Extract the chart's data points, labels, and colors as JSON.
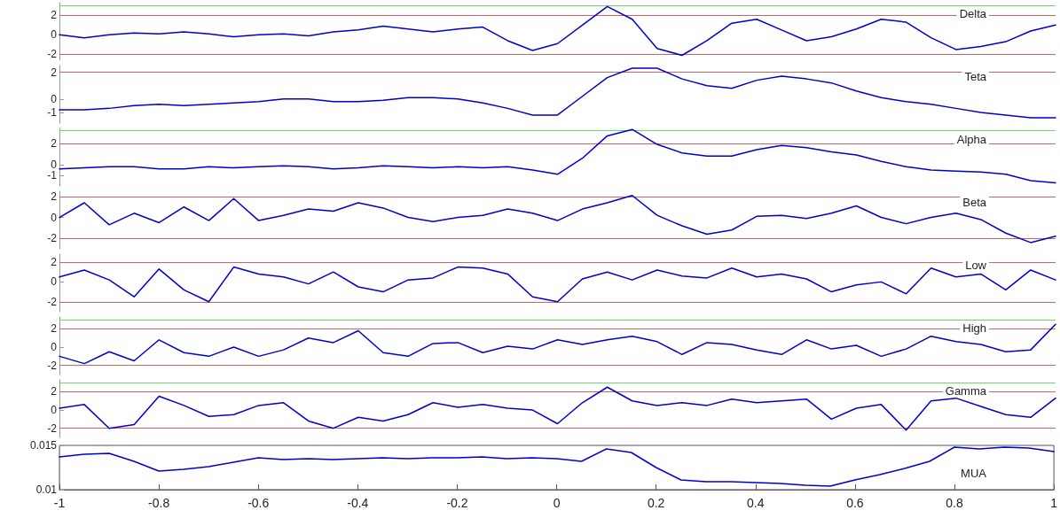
{
  "chart_data": [
    {
      "type": "line",
      "x": [
        -1,
        -0.95,
        -0.9,
        -0.85,
        -0.8,
        -0.75,
        -0.7,
        -0.65,
        -0.6,
        -0.55,
        -0.5,
        -0.45,
        -0.4,
        -0.35,
        -0.3,
        -0.25,
        -0.2,
        -0.15,
        -0.1,
        -0.05,
        0,
        0.05,
        0.1,
        0.15,
        0.2,
        0.25,
        0.3,
        0.35,
        0.4,
        0.45,
        0.5,
        0.55,
        0.6,
        0.65,
        0.7,
        0.75,
        0.8,
        0.85,
        0.9,
        0.95,
        1
      ],
      "xlim": [
        -1,
        1
      ],
      "ylim": [
        -2.6,
        3.3
      ],
      "yticks": [
        -2,
        0,
        2
      ],
      "tick_labels": "y",
      "grid": false,
      "line_style": "solid",
      "marker": "none",
      "series": [
        {
          "name": "Delta",
          "color": "#0000cc",
          "values": [
            0,
            -0.3,
            0,
            0.2,
            0.1,
            0.3,
            0.1,
            -0.2,
            0,
            0.1,
            -0.1,
            0.3,
            0.5,
            0.9,
            0.6,
            0.3,
            0.6,
            0.8,
            -0.6,
            -1.6,
            -0.9,
            1.0,
            2.9,
            1.6,
            -1.4,
            -2.1,
            -0.6,
            1.2,
            1.6,
            0.5,
            -0.6,
            -0.2,
            0.6,
            1.6,
            1.3,
            -0.3,
            -1.5,
            -1.2,
            -0.7,
            0.4,
            1.0
          ]
        }
      ],
      "ref_lines": [
        {
          "axis": "y",
          "value": 3,
          "color": "#66dd66"
        },
        {
          "axis": "y",
          "value": 2,
          "color": "#cc6666"
        },
        {
          "axis": "y",
          "value": -2,
          "color": "#cc6666"
        }
      ]
    },
    {
      "type": "line",
      "x": [
        -1,
        -0.95,
        -0.9,
        -0.85,
        -0.8,
        -0.75,
        -0.7,
        -0.65,
        -0.6,
        -0.55,
        -0.5,
        -0.45,
        -0.4,
        -0.35,
        -0.3,
        -0.25,
        -0.2,
        -0.15,
        -0.1,
        -0.05,
        0,
        0.05,
        0.1,
        0.15,
        0.2,
        0.25,
        0.3,
        0.35,
        0.4,
        0.45,
        0.5,
        0.55,
        0.6,
        0.65,
        0.7,
        0.75,
        0.8,
        0.85,
        0.9,
        0.95,
        1
      ],
      "xlim": [
        -1,
        1
      ],
      "ylim": [
        -1.8,
        2.5
      ],
      "yticks": [
        -1,
        0,
        2
      ],
      "tick_labels": "y",
      "grid": false,
      "line_style": "solid",
      "marker": "none",
      "series": [
        {
          "name": "Teta",
          "color": "#0000cc",
          "values": [
            -0.8,
            -0.8,
            -0.7,
            -0.5,
            -0.4,
            -0.5,
            -0.4,
            -0.3,
            -0.2,
            0,
            0,
            -0.2,
            -0.2,
            -0.1,
            0.1,
            0.1,
            0,
            -0.3,
            -0.7,
            -1.2,
            -1.2,
            0.2,
            1.6,
            2.3,
            2.3,
            1.5,
            1.0,
            0.8,
            1.4,
            1.7,
            1.5,
            1.2,
            0.6,
            0.1,
            -0.2,
            -0.4,
            -0.7,
            -1.0,
            -1.2,
            -1.4,
            -1.4
          ]
        }
      ],
      "ref_lines": [
        {
          "axis": "y",
          "value": 2,
          "color": "#cc6666"
        }
      ]
    },
    {
      "type": "line",
      "x": [
        -1,
        -0.95,
        -0.9,
        -0.85,
        -0.8,
        -0.75,
        -0.7,
        -0.65,
        -0.6,
        -0.55,
        -0.5,
        -0.45,
        -0.4,
        -0.35,
        -0.3,
        -0.25,
        -0.2,
        -0.15,
        -0.1,
        -0.05,
        0,
        0.05,
        0.1,
        0.15,
        0.2,
        0.25,
        0.3,
        0.35,
        0.4,
        0.45,
        0.5,
        0.55,
        0.6,
        0.65,
        0.7,
        0.75,
        0.8,
        0.85,
        0.9,
        0.95,
        1
      ],
      "xlim": [
        -1,
        1
      ],
      "ylim": [
        -2,
        3.4
      ],
      "yticks": [
        -1,
        0,
        2
      ],
      "tick_labels": "y",
      "grid": false,
      "line_style": "solid",
      "marker": "none",
      "series": [
        {
          "name": "Alpha",
          "color": "#0000cc",
          "values": [
            -0.4,
            -0.3,
            -0.2,
            -0.2,
            -0.4,
            -0.4,
            -0.2,
            -0.3,
            -0.2,
            -0.1,
            -0.2,
            -0.4,
            -0.3,
            -0.1,
            -0.2,
            -0.3,
            -0.2,
            -0.3,
            -0.2,
            -0.5,
            -0.9,
            0.6,
            2.7,
            3.3,
            1.9,
            1.1,
            0.8,
            0.8,
            1.4,
            1.8,
            1.6,
            1.2,
            0.9,
            0.3,
            -0.2,
            -0.5,
            -0.6,
            -0.7,
            -0.9,
            -1.5,
            -1.7
          ]
        }
      ],
      "ref_lines": [
        {
          "axis": "y",
          "value": 3.2,
          "color": "#66dd66"
        },
        {
          "axis": "y",
          "value": 2,
          "color": "#cc6666"
        }
      ]
    },
    {
      "type": "line",
      "x": [
        -1,
        -0.95,
        -0.9,
        -0.85,
        -0.8,
        -0.75,
        -0.7,
        -0.65,
        -0.6,
        -0.55,
        -0.5,
        -0.45,
        -0.4,
        -0.35,
        -0.3,
        -0.25,
        -0.2,
        -0.15,
        -0.1,
        -0.05,
        0,
        0.05,
        0.1,
        0.15,
        0.2,
        0.25,
        0.3,
        0.35,
        0.4,
        0.45,
        0.5,
        0.55,
        0.6,
        0.65,
        0.7,
        0.75,
        0.8,
        0.85,
        0.9,
        0.95,
        1
      ],
      "xlim": [
        -1,
        1
      ],
      "ylim": [
        -3,
        2.5
      ],
      "yticks": [
        -2,
        0,
        2
      ],
      "tick_labels": "y",
      "grid": false,
      "line_style": "solid",
      "marker": "none",
      "series": [
        {
          "name": "Beta",
          "color": "#0000cc",
          "values": [
            0,
            1.4,
            -0.7,
            0.4,
            -0.5,
            1.0,
            -0.3,
            1.8,
            -0.3,
            0.2,
            0.8,
            0.6,
            1.4,
            0.9,
            0,
            -0.4,
            0,
            0.2,
            0.8,
            0.4,
            -0.3,
            0.8,
            1.4,
            2.1,
            0.2,
            -0.8,
            -1.6,
            -1.2,
            0.1,
            0.2,
            -0.1,
            0.4,
            1.1,
            0,
            -0.6,
            0,
            0.4,
            -0.2,
            -1.5,
            -2.4,
            -1.8
          ]
        }
      ],
      "ref_lines": [
        {
          "axis": "y",
          "value": 2,
          "color": "#cc6666"
        },
        {
          "axis": "y",
          "value": -2,
          "color": "#cc6666"
        }
      ]
    },
    {
      "type": "line",
      "x": [
        -1,
        -0.95,
        -0.9,
        -0.85,
        -0.8,
        -0.75,
        -0.7,
        -0.65,
        -0.6,
        -0.55,
        -0.5,
        -0.45,
        -0.4,
        -0.35,
        -0.3,
        -0.25,
        -0.2,
        -0.15,
        -0.1,
        -0.05,
        0,
        0.05,
        0.1,
        0.15,
        0.2,
        0.25,
        0.3,
        0.35,
        0.4,
        0.45,
        0.5,
        0.55,
        0.6,
        0.65,
        0.7,
        0.75,
        0.8,
        0.85,
        0.9,
        0.95,
        1
      ],
      "xlim": [
        -1,
        1
      ],
      "ylim": [
        -3,
        2.8
      ],
      "yticks": [
        -2,
        0,
        2
      ],
      "tick_labels": "y",
      "grid": false,
      "line_style": "solid",
      "marker": "none",
      "series": [
        {
          "name": "Low",
          "color": "#0000cc",
          "values": [
            0.5,
            1.2,
            0.2,
            -1.5,
            1.3,
            -0.8,
            -2.0,
            1.5,
            0.8,
            0.5,
            -0.2,
            1.0,
            -0.5,
            -1.0,
            0.2,
            0.4,
            1.5,
            1.4,
            0.8,
            -1.5,
            -2.0,
            0.3,
            1.0,
            0.2,
            1.2,
            0.6,
            0.4,
            1.4,
            0.5,
            0.8,
            0.3,
            -1.0,
            -0.3,
            0,
            -1.2,
            1.4,
            0.5,
            0.8,
            -0.8,
            1.2,
            0.2
          ]
        }
      ],
      "ref_lines": [
        {
          "axis": "y",
          "value": 2,
          "color": "#cc6666"
        },
        {
          "axis": "y",
          "value": -2,
          "color": "#cc6666"
        }
      ]
    },
    {
      "type": "line",
      "x": [
        -1,
        -0.95,
        -0.9,
        -0.85,
        -0.8,
        -0.75,
        -0.7,
        -0.65,
        -0.6,
        -0.55,
        -0.5,
        -0.45,
        -0.4,
        -0.35,
        -0.3,
        -0.25,
        -0.2,
        -0.15,
        -0.1,
        -0.05,
        0,
        0.05,
        0.1,
        0.15,
        0.2,
        0.25,
        0.3,
        0.35,
        0.4,
        0.45,
        0.5,
        0.55,
        0.6,
        0.65,
        0.7,
        0.75,
        0.8,
        0.85,
        0.9,
        0.95,
        1
      ],
      "xlim": [
        -1,
        1
      ],
      "ylim": [
        -3,
        3.3
      ],
      "yticks": [
        -2,
        0,
        2
      ],
      "tick_labels": "y",
      "grid": false,
      "line_style": "solid",
      "marker": "none",
      "series": [
        {
          "name": "High",
          "color": "#0000cc",
          "values": [
            -1.0,
            -1.8,
            -0.5,
            -1.5,
            0.8,
            -0.6,
            -1.0,
            0,
            -1.0,
            -0.3,
            1.0,
            0.5,
            1.8,
            -0.6,
            -1.0,
            0.4,
            0.5,
            -0.6,
            0.1,
            -0.2,
            0.8,
            0.3,
            0.8,
            1.2,
            0.6,
            -0.8,
            0.5,
            0.3,
            -0.3,
            -0.8,
            0.8,
            -0.2,
            0.2,
            -1.0,
            -0.2,
            1.2,
            0.6,
            0.3,
            -0.5,
            -0.3,
            2.5
          ]
        }
      ],
      "ref_lines": [
        {
          "axis": "y",
          "value": 3,
          "color": "#66dd66"
        },
        {
          "axis": "y",
          "value": 2,
          "color": "#cc6666"
        },
        {
          "axis": "y",
          "value": -2,
          "color": "#cc6666"
        }
      ]
    },
    {
      "type": "line",
      "x": [
        -1,
        -0.95,
        -0.9,
        -0.85,
        -0.8,
        -0.75,
        -0.7,
        -0.65,
        -0.6,
        -0.55,
        -0.5,
        -0.45,
        -0.4,
        -0.35,
        -0.3,
        -0.25,
        -0.2,
        -0.15,
        -0.1,
        -0.05,
        0,
        0.05,
        0.1,
        0.15,
        0.2,
        0.25,
        0.3,
        0.35,
        0.4,
        0.45,
        0.5,
        0.55,
        0.6,
        0.65,
        0.7,
        0.75,
        0.8,
        0.85,
        0.9,
        0.95,
        1
      ],
      "xlim": [
        -1,
        1
      ],
      "ylim": [
        -3,
        3.3
      ],
      "yticks": [
        -2,
        0,
        2
      ],
      "tick_labels": "y",
      "grid": false,
      "line_style": "solid",
      "marker": "none",
      "series": [
        {
          "name": "Gamma",
          "color": "#0000cc",
          "values": [
            0.2,
            0.6,
            -2.0,
            -1.6,
            1.5,
            0.5,
            -0.7,
            -0.5,
            0.5,
            0.8,
            -1.2,
            -2.0,
            -0.8,
            -1.2,
            -0.5,
            0.8,
            0.3,
            0.6,
            0.2,
            0,
            -1.5,
            0.8,
            2.5,
            1.0,
            0.5,
            0.8,
            0.5,
            1.2,
            0.8,
            1.0,
            1.2,
            -1.0,
            0.2,
            0.6,
            -2.2,
            1.0,
            1.3,
            0.4,
            -0.5,
            -0.8,
            1.3
          ]
        }
      ],
      "ref_lines": [
        {
          "axis": "y",
          "value": 3,
          "color": "#66dd66"
        },
        {
          "axis": "y",
          "value": 2,
          "color": "#cc6666"
        },
        {
          "axis": "y",
          "value": -2,
          "color": "#cc6666"
        }
      ]
    },
    {
      "type": "line",
      "x": [
        -1,
        -0.95,
        -0.9,
        -0.85,
        -0.8,
        -0.75,
        -0.7,
        -0.65,
        -0.6,
        -0.55,
        -0.5,
        -0.45,
        -0.4,
        -0.35,
        -0.3,
        -0.25,
        -0.2,
        -0.15,
        -0.1,
        -0.05,
        0,
        0.05,
        0.1,
        0.15,
        0.2,
        0.25,
        0.3,
        0.35,
        0.4,
        0.45,
        0.5,
        0.55,
        0.6,
        0.65,
        0.7,
        0.75,
        0.8,
        0.85,
        0.9,
        0.95,
        1
      ],
      "xlim": [
        -1,
        1
      ],
      "xticks": [
        -1,
        -0.8,
        -0.6,
        -0.4,
        -0.2,
        0,
        0.2,
        0.4,
        0.6,
        0.8,
        1
      ],
      "ylim": [
        0.01,
        0.015
      ],
      "yticks": [
        0.01,
        0.015
      ],
      "grid": false,
      "line_style": "solid",
      "marker": "none",
      "series": [
        {
          "name": "MUA",
          "color": "#0000cc",
          "values": [
            0.0137,
            0.014,
            0.0141,
            0.0132,
            0.0121,
            0.0123,
            0.0126,
            0.0131,
            0.0136,
            0.0134,
            0.0135,
            0.0134,
            0.0135,
            0.0136,
            0.0135,
            0.0136,
            0.0136,
            0.0137,
            0.0135,
            0.0136,
            0.0135,
            0.0132,
            0.0146,
            0.0142,
            0.0125,
            0.0111,
            0.0109,
            0.0109,
            0.0108,
            0.0107,
            0.0105,
            0.0104,
            0.0111,
            0.0117,
            0.0124,
            0.0132,
            0.0148,
            0.0146,
            0.0148,
            0.0147,
            0.0143
          ]
        }
      ]
    }
  ]
}
